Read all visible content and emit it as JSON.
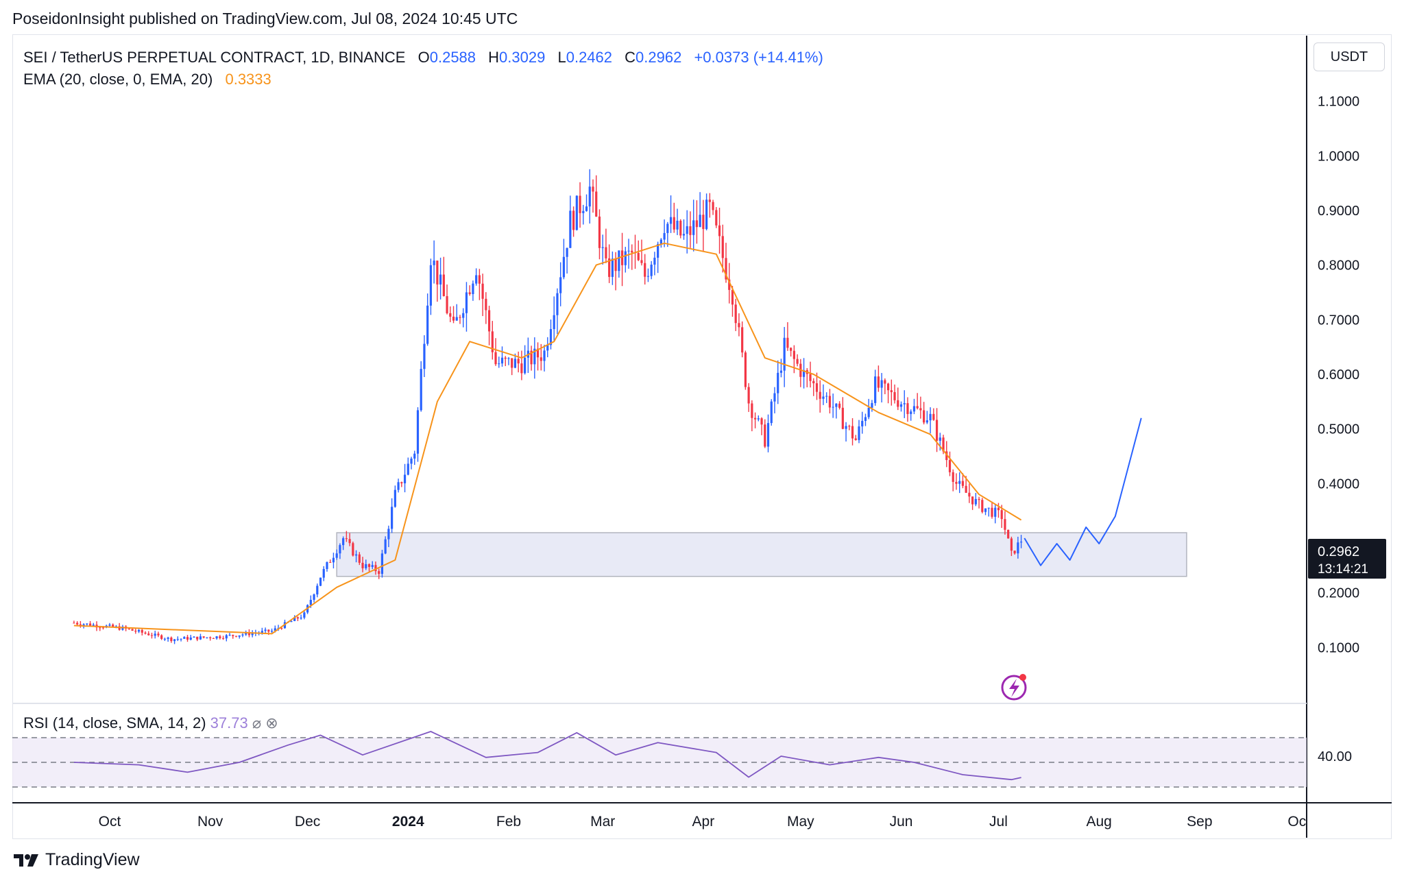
{
  "header": {
    "published": "PoseidonInsight published on TradingView.com, Jul 08, 2024 10:45 UTC"
  },
  "legend": {
    "symbol": "SEI / TetherUS PERPETUAL CONTRACT, 1D, BINANCE",
    "open_label": "O",
    "open": "0.2588",
    "high_label": "H",
    "high": "0.3029",
    "low_label": "L",
    "low": "0.2462",
    "close_label": "C",
    "close": "0.2962",
    "change": "+0.0373 (+14.41%)",
    "ema_label": "EMA (20, close, 0, EMA, 20)",
    "ema_value": "0.3333"
  },
  "price_axis": {
    "unit": "USDT",
    "last_price": "0.2962",
    "countdown": "13:14:21"
  },
  "rsi": {
    "label": "RSI (14, close, SMA, 14, 2)",
    "value": "37.73",
    "axis_label": "40.00"
  },
  "footer": {
    "brand": "TradingView"
  },
  "colors": {
    "up": "#2962ff",
    "down": "#f23645",
    "ema": "#f7931a",
    "rsi": "#7e57c2",
    "zone": "#e8eaf6",
    "projection": "#2962ff"
  },
  "chart_data": {
    "type": "candlestick",
    "y_ticks": [
      "0.1000",
      "0.2000",
      "0.4000",
      "0.5000",
      "0.6000",
      "0.7000",
      "0.8000",
      "0.9000",
      "1.0000",
      "1.1000"
    ],
    "x_ticks": [
      "Oct",
      "Nov",
      "Dec",
      "2024",
      "Feb",
      "Mar",
      "Apr",
      "May",
      "Jun",
      "Jul",
      "Aug",
      "Sep",
      "Oc"
    ],
    "ylim": [
      0.0,
      1.22
    ],
    "support_zone": {
      "from": 0.23,
      "to": 0.31
    },
    "price_path": [
      [
        "2023-09-20",
        0.145
      ],
      [
        "2023-10-05",
        0.135
      ],
      [
        "2023-10-20",
        0.115
      ],
      [
        "2023-11-05",
        0.12
      ],
      [
        "2023-11-20",
        0.13
      ],
      [
        "2023-11-30",
        0.16
      ],
      [
        "2023-12-05",
        0.23
      ],
      [
        "2023-12-12",
        0.3
      ],
      [
        "2023-12-18",
        0.25
      ],
      [
        "2023-12-23",
        0.24
      ],
      [
        "2023-12-28",
        0.38
      ],
      [
        "2024-01-03",
        0.46
      ],
      [
        "2024-01-08",
        0.82
      ],
      [
        "2024-01-15",
        0.68
      ],
      [
        "2024-01-22",
        0.8
      ],
      [
        "2024-01-28",
        0.62
      ],
      [
        "2024-02-05",
        0.62
      ],
      [
        "2024-02-12",
        0.64
      ],
      [
        "2024-02-20",
        0.88
      ],
      [
        "2024-02-26",
        0.94
      ],
      [
        "2024-03-02",
        0.79
      ],
      [
        "2024-03-10",
        0.82
      ],
      [
        "2024-03-14",
        0.78
      ],
      [
        "2024-03-20",
        0.88
      ],
      [
        "2024-03-26",
        0.85
      ],
      [
        "2024-04-03",
        0.9
      ],
      [
        "2024-04-10",
        0.75
      ],
      [
        "2024-04-15",
        0.55
      ],
      [
        "2024-04-20",
        0.48
      ],
      [
        "2024-04-26",
        0.65
      ],
      [
        "2024-05-02",
        0.6
      ],
      [
        "2024-05-10",
        0.55
      ],
      [
        "2024-05-18",
        0.48
      ],
      [
        "2024-05-24",
        0.58
      ],
      [
        "2024-06-01",
        0.55
      ],
      [
        "2024-06-10",
        0.52
      ],
      [
        "2024-06-18",
        0.4
      ],
      [
        "2024-06-25",
        0.36
      ],
      [
        "2024-07-02",
        0.34
      ],
      [
        "2024-07-05",
        0.27
      ],
      [
        "2024-07-08",
        0.2962
      ]
    ],
    "ema_path": [
      [
        "2023-09-20",
        0.14
      ],
      [
        "2023-11-20",
        0.125
      ],
      [
        "2023-12-10",
        0.21
      ],
      [
        "2023-12-28",
        0.26
      ],
      [
        "2024-01-10",
        0.55
      ],
      [
        "2024-01-20",
        0.66
      ],
      [
        "2024-02-05",
        0.63
      ],
      [
        "2024-02-15",
        0.66
      ],
      [
        "2024-02-28",
        0.8
      ],
      [
        "2024-03-20",
        0.84
      ],
      [
        "2024-04-05",
        0.82
      ],
      [
        "2024-04-20",
        0.63
      ],
      [
        "2024-05-05",
        0.6
      ],
      [
        "2024-05-25",
        0.53
      ],
      [
        "2024-06-10",
        0.49
      ],
      [
        "2024-06-25",
        0.38
      ],
      [
        "2024-07-08",
        0.3333
      ]
    ],
    "projection_path": [
      [
        "2024-07-09",
        0.3
      ],
      [
        "2024-07-14",
        0.25
      ],
      [
        "2024-07-19",
        0.29
      ],
      [
        "2024-07-23",
        0.26
      ],
      [
        "2024-07-28",
        0.32
      ],
      [
        "2024-08-01",
        0.29
      ],
      [
        "2024-08-06",
        0.34
      ],
      [
        "2024-08-14",
        0.52
      ]
    ],
    "rsi_path": [
      [
        "2023-09-20",
        50
      ],
      [
        "2023-10-10",
        48
      ],
      [
        "2023-10-25",
        42
      ],
      [
        "2023-11-10",
        50
      ],
      [
        "2023-11-25",
        64
      ],
      [
        "2023-12-05",
        72
      ],
      [
        "2023-12-18",
        56
      ],
      [
        "2024-01-08",
        75
      ],
      [
        "2024-01-25",
        54
      ],
      [
        "2024-02-10",
        58
      ],
      [
        "2024-02-22",
        74
      ],
      [
        "2024-03-05",
        56
      ],
      [
        "2024-03-18",
        66
      ],
      [
        "2024-04-05",
        58
      ],
      [
        "2024-04-15",
        38
      ],
      [
        "2024-04-25",
        55
      ],
      [
        "2024-05-10",
        48
      ],
      [
        "2024-05-25",
        54
      ],
      [
        "2024-06-05",
        50
      ],
      [
        "2024-06-20",
        40
      ],
      [
        "2024-07-05",
        36
      ],
      [
        "2024-07-08",
        37.73
      ]
    ]
  }
}
